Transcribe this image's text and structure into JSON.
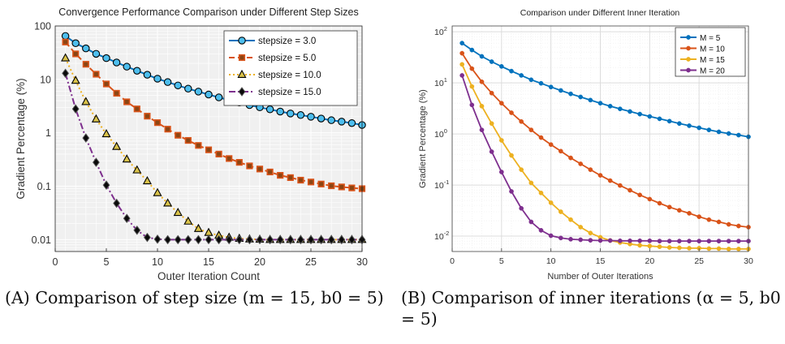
{
  "panels": [
    {
      "caption": {
        "tag": "(A)",
        "text": "Comparison of step size (m = 15, b0 = 5)"
      },
      "chart_data": {
        "type": "line",
        "title": "Convergence Performance Comparison under Different Step Sizes",
        "xlabel": "Outer Iteration Count",
        "ylabel": "Gradient Percentage (%)",
        "yscale": "log",
        "xlim": [
          0,
          30
        ],
        "ylim": [
          0.006,
          100
        ],
        "xticks": [
          0,
          5,
          10,
          15,
          20,
          25,
          30
        ],
        "yticks": [
          {
            "value": 0.01,
            "label": "0.01"
          },
          {
            "value": 0.1,
            "label": "0.1"
          },
          {
            "value": 1,
            "label": "1"
          },
          {
            "value": 10,
            "label": "10"
          },
          {
            "value": 100,
            "label": "100"
          }
        ],
        "grid": true,
        "minor_grid": true,
        "legend_position": "top-right",
        "x": [
          1,
          2,
          3,
          4,
          5,
          6,
          7,
          8,
          9,
          10,
          11,
          12,
          13,
          14,
          15,
          16,
          17,
          18,
          19,
          20,
          21,
          22,
          23,
          24,
          25,
          26,
          27,
          28,
          29,
          30
        ],
        "series": [
          {
            "name": "stepsize = 3.0",
            "color": "#0072BD",
            "line": "solid",
            "marker": "circle",
            "marker_fill": "#4DBEEE",
            "values": [
              65.0,
              47.5,
              38.0,
              30.1,
              25.0,
              20.7,
              17.3,
              14.5,
              12.2,
              10.3,
              8.9,
              7.7,
              6.7,
              5.9,
              5.2,
              4.6,
              4.1,
              3.7,
              3.3,
              3.0,
              2.75,
              2.5,
              2.3,
              2.15,
              2.0,
              1.85,
              1.72,
              1.62,
              1.52,
              1.4
            ]
          },
          {
            "name": "stepsize = 5.0",
            "color": "#D95319",
            "line": "dashed",
            "marker": "square",
            "marker_fill": "#8B4513",
            "values": [
              50.0,
              30.0,
              19.2,
              12.5,
              8.2,
              5.5,
              3.8,
              2.8,
              2.05,
              1.55,
              1.17,
              0.9,
              0.72,
              0.58,
              0.48,
              0.4,
              0.33,
              0.28,
              0.24,
              0.21,
              0.185,
              0.16,
              0.145,
              0.13,
              0.12,
              0.11,
              0.102,
              0.097,
              0.093,
              0.09
            ]
          },
          {
            "name": "stepsize = 10.0",
            "color": "#EDB120",
            "line": "dotted",
            "marker": "triangle",
            "marker_fill": "#D9C24A",
            "values": [
              25.0,
              9.5,
              3.8,
              1.8,
              0.95,
              0.55,
              0.32,
              0.2,
              0.125,
              0.075,
              0.048,
              0.032,
              0.022,
              0.016,
              0.0135,
              0.012,
              0.011,
              0.0105,
              0.0102,
              0.0101,
              0.01,
              0.01,
              0.01,
              0.01,
              0.01,
              0.01,
              0.01,
              0.01,
              0.01,
              0.01
            ]
          },
          {
            "name": "stepsize = 15.0",
            "color": "#7E2F8E",
            "line": "dashdot",
            "marker": "diamond",
            "marker_fill": "#0a0a0a",
            "values": [
              13.0,
              2.8,
              0.8,
              0.28,
              0.105,
              0.048,
              0.025,
              0.015,
              0.011,
              0.0102,
              0.01,
              0.01,
              0.01,
              0.01,
              0.01,
              0.01,
              0.01,
              0.01,
              0.01,
              0.01,
              0.01,
              0.01,
              0.01,
              0.01,
              0.01,
              0.01,
              0.01,
              0.01,
              0.01,
              0.01
            ]
          }
        ]
      }
    },
    {
      "caption": {
        "tag": "(B)",
        "text": "Comparison of inner iterations (α = 5, b0 = 5)"
      },
      "chart_data": {
        "type": "line",
        "title": "Comparison under Different Inner Iteration",
        "xlabel": "Number of Outer Iterations",
        "ylabel": "Gradient Percentage (%)",
        "yscale": "log",
        "xlim": [
          0,
          30
        ],
        "ylim": [
          0.005,
          130
        ],
        "xticks": [
          0,
          5,
          10,
          15,
          20,
          25,
          30
        ],
        "yticks": [
          {
            "value": 0.01,
            "base": "10",
            "exp": "-2"
          },
          {
            "value": 0.1,
            "base": "10",
            "exp": "-1"
          },
          {
            "value": 1,
            "base": "10",
            "exp": "0"
          },
          {
            "value": 10,
            "base": "10",
            "exp": "1"
          },
          {
            "value": 100,
            "base": "10",
            "exp": "2"
          }
        ],
        "grid": true,
        "minor_grid": true,
        "legend_position": "top-right",
        "x": [
          1,
          2,
          3,
          4,
          5,
          6,
          7,
          8,
          9,
          10,
          11,
          12,
          13,
          14,
          15,
          16,
          17,
          18,
          19,
          20,
          21,
          22,
          23,
          24,
          25,
          26,
          27,
          28,
          29,
          30
        ],
        "series": [
          {
            "name": "M = 5",
            "color": "#0072BD",
            "marker": "dot",
            "values": [
              60.0,
              44.0,
              33.0,
              26.0,
              21.0,
              17.0,
              14.0,
              11.5,
              9.8,
              8.3,
              7.1,
              6.1,
              5.3,
              4.6,
              4.0,
              3.5,
              3.1,
              2.75,
              2.45,
              2.2,
              1.98,
              1.78,
              1.6,
              1.45,
              1.32,
              1.2,
              1.1,
              1.02,
              0.95,
              0.88
            ]
          },
          {
            "name": "M = 10",
            "color": "#D95319",
            "marker": "dot",
            "values": [
              38.0,
              19.0,
              10.5,
              6.3,
              4.0,
              2.6,
              1.75,
              1.2,
              0.85,
              0.62,
              0.46,
              0.34,
              0.26,
              0.2,
              0.155,
              0.122,
              0.098,
              0.079,
              0.064,
              0.053,
              0.044,
              0.037,
              0.032,
              0.028,
              0.024,
              0.021,
              0.019,
              0.017,
              0.0158,
              0.015
            ]
          },
          {
            "name": "M = 15",
            "color": "#EDB120",
            "marker": "dot",
            "values": [
              23.0,
              8.5,
              3.5,
              1.6,
              0.75,
              0.38,
              0.2,
              0.11,
              0.07,
              0.045,
              0.03,
              0.021,
              0.015,
              0.0115,
              0.0095,
              0.0082,
              0.0075,
              0.007,
              0.0066,
              0.0064,
              0.0062,
              0.006,
              0.0059,
              0.0058,
              0.0058,
              0.0057,
              0.0057,
              0.0056,
              0.0056,
              0.0056
            ]
          },
          {
            "name": "M = 20",
            "color": "#7E2F8E",
            "marker": "dot",
            "values": [
              14.0,
              3.7,
              1.2,
              0.45,
              0.18,
              0.075,
              0.035,
              0.019,
              0.013,
              0.0102,
              0.0092,
              0.0087,
              0.0085,
              0.0083,
              0.0082,
              0.0082,
              0.0081,
              0.0081,
              0.0081,
              0.0081,
              0.008,
              0.008,
              0.008,
              0.008,
              0.008,
              0.008,
              0.008,
              0.008,
              0.008,
              0.008
            ]
          }
        ]
      }
    }
  ]
}
